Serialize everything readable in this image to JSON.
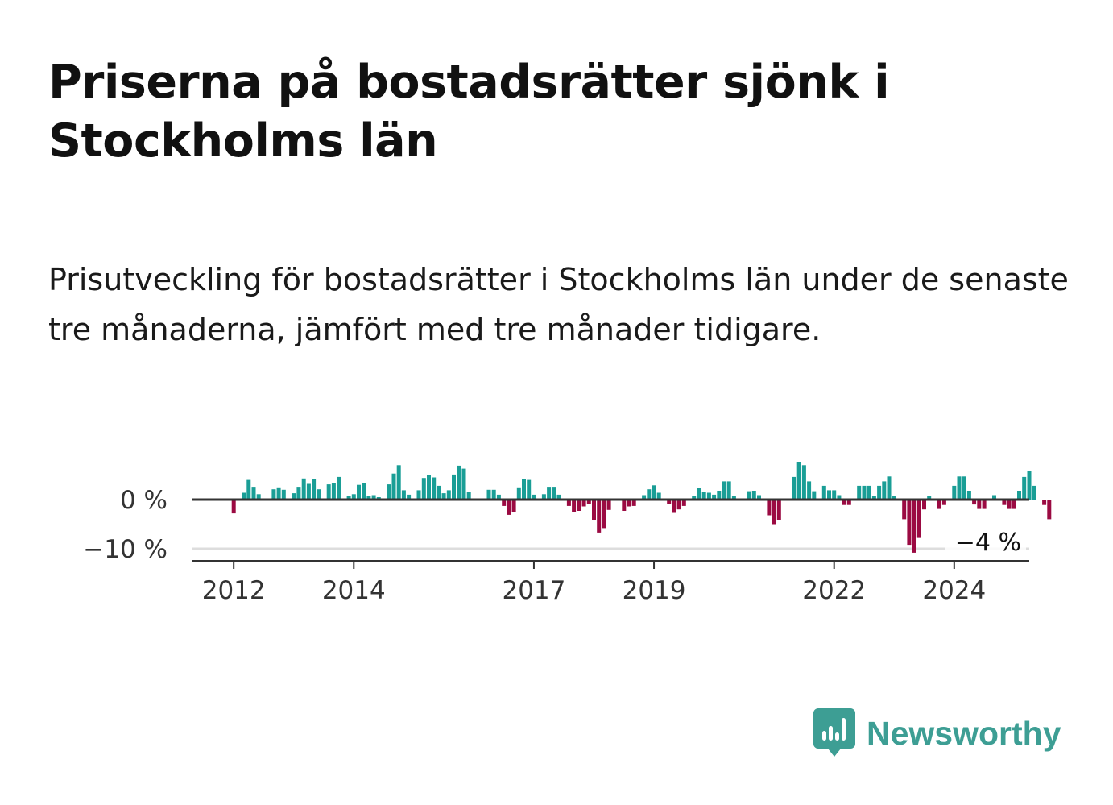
{
  "title": "Priserna på bostadsrätter sjönk i Stockholms län",
  "subtitle": "Prisutveckling för bostadsrätter i Stockholms län under de senaste tre månaderna, jämfört med tre månader tidigare.",
  "brand": {
    "name": "Newsworthy"
  },
  "colors": {
    "positive": "#1a9e96",
    "negative": "#9b0a42",
    "axis": "#333333",
    "grid": "#dddddd"
  },
  "chart_data": {
    "type": "bar",
    "title": "",
    "xlabel": "",
    "ylabel": "",
    "ylim": [
      -12,
      8
    ],
    "x_range": [
      2011.3,
      2025.25
    ],
    "y_ticks": [
      {
        "value": 0,
        "label": "0 %"
      },
      {
        "value": -10,
        "label": "−10 %"
      }
    ],
    "x_ticks": [
      {
        "value": 2012,
        "label": "2012"
      },
      {
        "value": 2014,
        "label": "2014"
      },
      {
        "value": 2017,
        "label": "2017"
      },
      {
        "value": 2019,
        "label": "2019"
      },
      {
        "value": 2022,
        "label": "2022"
      },
      {
        "value": 2024,
        "label": "2024"
      }
    ],
    "start": 2011.6667,
    "step_per_bar": 0.08333,
    "values": [
      0,
      0,
      0,
      0,
      -2.8,
      0,
      1.4,
      4.0,
      2.6,
      1.1,
      0,
      0,
      2.1,
      2.5,
      2.0,
      0,
      1.3,
      2.6,
      4.3,
      3.2,
      4.1,
      2.1,
      0,
      3.1,
      3.3,
      4.6,
      0,
      0.7,
      1.1,
      3.0,
      3.4,
      0.7,
      0.9,
      0.5,
      0,
      3.1,
      5.3,
      7.0,
      1.9,
      1.0,
      0,
      1.9,
      4.4,
      5.0,
      4.5,
      2.8,
      1.3,
      1.9,
      5.1,
      6.9,
      6.3,
      1.6,
      0,
      0,
      0,
      2.0,
      2.0,
      1.0,
      -1.3,
      -3.1,
      -2.6,
      2.5,
      4.2,
      4.0,
      1.0,
      0,
      1.1,
      2.6,
      2.6,
      1.0,
      0,
      -1.3,
      -2.5,
      -2.3,
      -1.4,
      -0.9,
      -4.1,
      -6.7,
      -5.8,
      -2.1,
      0,
      0,
      -2.3,
      -1.4,
      -1.3,
      0,
      0.9,
      2.1,
      2.9,
      1.4,
      0,
      -0.9,
      -2.7,
      -2.0,
      -1.3,
      0,
      0.8,
      2.3,
      1.6,
      1.4,
      1.0,
      1.8,
      3.7,
      3.7,
      0.8,
      0,
      0,
      1.7,
      1.8,
      0.9,
      0,
      -3.2,
      -5.0,
      -4.1,
      0,
      0,
      4.6,
      7.7,
      7.0,
      3.7,
      1.7,
      0,
      2.8,
      1.9,
      1.9,
      0.9,
      -1.1,
      -1.1,
      0,
      2.8,
      2.8,
      2.8,
      0.8,
      2.8,
      3.7,
      4.7,
      0.8,
      0,
      -4.0,
      -9.2,
      -10.8,
      -7.8,
      -2.0,
      0.8,
      0,
      -1.9,
      -1.1,
      0,
      2.8,
      4.7,
      4.7,
      1.8,
      -1.0,
      -1.9,
      -1.9,
      0,
      0.9,
      0,
      -1.1,
      -1.9,
      -1.9,
      1.8,
      4.6,
      5.8,
      2.8,
      0,
      -1.1,
      -4.0
    ],
    "last_value_label": "−4 %"
  }
}
